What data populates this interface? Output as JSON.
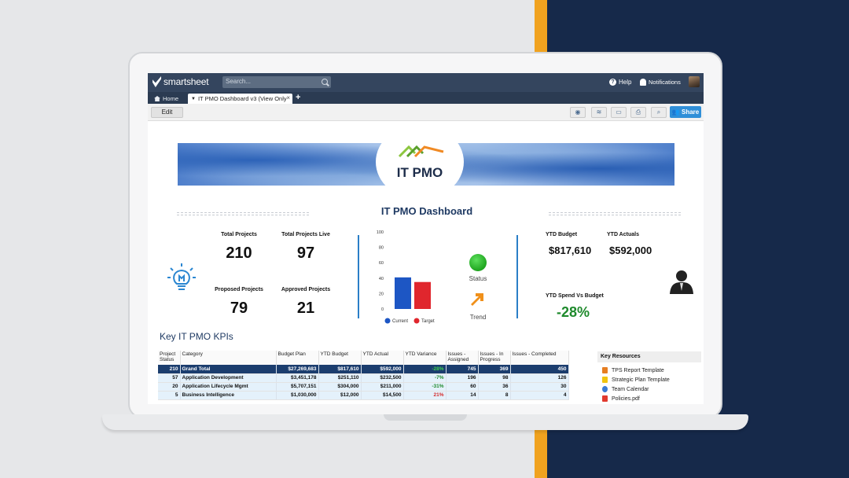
{
  "app": {
    "logo_text": "smartsheet",
    "search_placeholder": "Search...",
    "help_label": "Help",
    "notifications_label": "Notifications"
  },
  "tabs": {
    "home_label": "Home",
    "active_label": "IT PMO Dashboard v3 (View Only",
    "close_glyph": "×",
    "add_glyph": "+"
  },
  "toolbar": {
    "edit_label": "Edit",
    "share_label": "Share",
    "buttons": [
      "globe-icon",
      "activity-icon",
      "present-icon",
      "print-icon",
      "search-sheet-icon"
    ]
  },
  "banner": {
    "badge_text": "IT PMO"
  },
  "dashboard": {
    "title": "IT PMO Dashboard"
  },
  "kpis": [
    {
      "label": "Total Projects",
      "value": "210"
    },
    {
      "label": "Total Projects Live",
      "value": "97"
    },
    {
      "label": "Proposed Projects",
      "value": "79"
    },
    {
      "label": "Approved Projects",
      "value": "21"
    }
  ],
  "chart_data": {
    "type": "bar",
    "categories": [
      "Current",
      "Target"
    ],
    "values": [
      41,
      35
    ],
    "ylim": [
      0,
      100
    ],
    "yticks": [
      "100",
      "80",
      "60",
      "40",
      "20",
      "0"
    ],
    "legend": [
      "Current",
      "Target"
    ],
    "colors": [
      "#1d56c4",
      "#e0262d"
    ]
  },
  "status": {
    "label": "Status",
    "color": "#22aa22"
  },
  "trend": {
    "label": "Trend",
    "color": "#f0901a"
  },
  "finance": {
    "ytd_budget_label": "YTD Budget",
    "ytd_budget_value": "$817,610",
    "ytd_actuals_label": "YTD Actuals",
    "ytd_actuals_value": "$592,000",
    "spend_vs_budget_label": "YTD Spend Vs Budget",
    "spend_vs_budget_value": "-28%"
  },
  "kpi_section": {
    "title": "Key IT PMO KPIs",
    "columns": [
      "Project Status",
      "Category",
      "Budget Plan",
      "YTD Budget",
      "YTD Actual",
      "YTD Variance",
      "Issues - Assigned",
      "Issues - In Progress",
      "Issues - Completed"
    ],
    "rows": [
      {
        "status": "210",
        "category": "Grand Total",
        "budget_plan": "$27,269,683",
        "ytd_budget": "$817,610",
        "ytd_actual": "$592,000",
        "ytd_variance": "-28%",
        "assigned": "745",
        "in_progress": "369",
        "completed": "450"
      },
      {
        "status": "57",
        "category": "Application Development",
        "budget_plan": "$3,451,178",
        "ytd_budget": "$251,110",
        "ytd_actual": "$232,500",
        "ytd_variance": "-7%",
        "assigned": "196",
        "in_progress": "98",
        "completed": "126"
      },
      {
        "status": "20",
        "category": "Application Lifecycle Mgmt",
        "budget_plan": "$5,707,151",
        "ytd_budget": "$304,000",
        "ytd_actual": "$211,000",
        "ytd_variance": "-31%",
        "assigned": "60",
        "in_progress": "36",
        "completed": "30"
      },
      {
        "status": "5",
        "category": "Business Intelligence",
        "budget_plan": "$1,030,000",
        "ytd_budget": "$12,000",
        "ytd_actual": "$14,500",
        "ytd_variance": "21%",
        "assigned": "14",
        "in_progress": "8",
        "completed": "4"
      }
    ]
  },
  "key_resources": {
    "title": "Key Resources",
    "items": [
      {
        "label": "TPS Report Template",
        "icon": "doc-orange-icon",
        "color": "#e67e22"
      },
      {
        "label": "Strategic Plan Template",
        "icon": "doc-yellow-icon",
        "color": "#f1c40f"
      },
      {
        "label": "Team Calendar",
        "icon": "link-icon",
        "color": "#3a7bd5"
      },
      {
        "label": "Policies.pdf",
        "icon": "pdf-icon",
        "color": "#e03a2f"
      }
    ]
  }
}
